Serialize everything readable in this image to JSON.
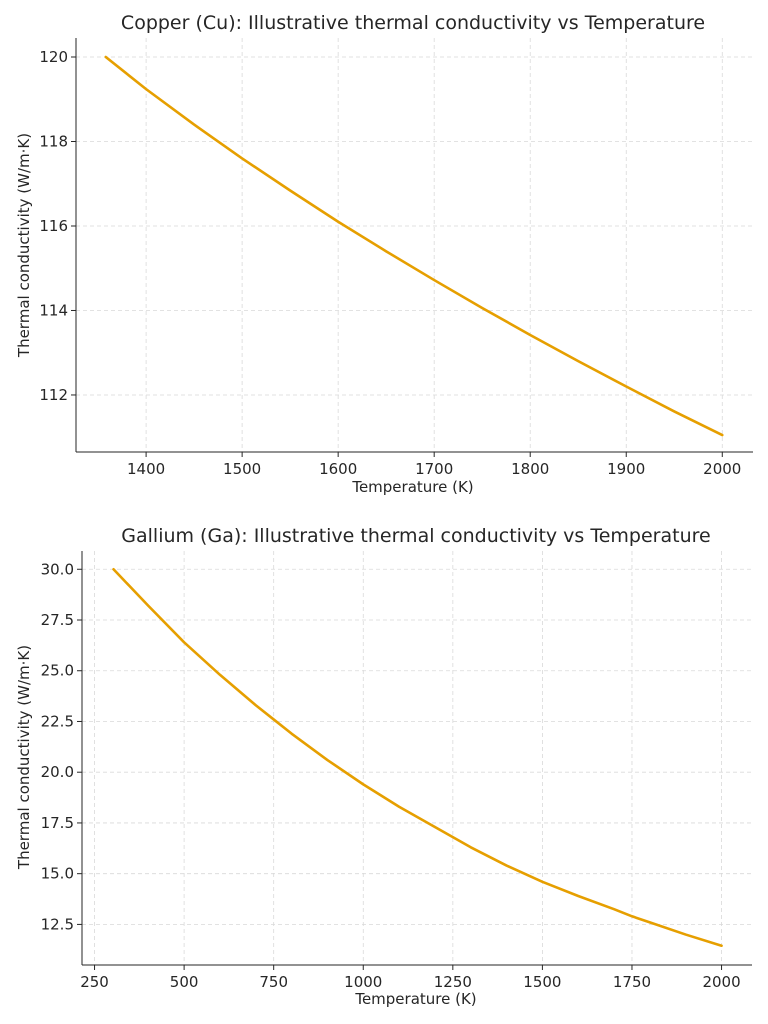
{
  "chart_data": [
    {
      "type": "line",
      "title": "Copper (Cu): Illustrative thermal conductivity vs Temperature",
      "xlabel": "Temperature (K)",
      "ylabel": "Thermal conductivity (W/m·K)",
      "xlim": [
        1327,
        2032
      ],
      "ylim": [
        110.65,
        120.45
      ],
      "xticks": [
        1400,
        1500,
        1600,
        1700,
        1800,
        1900,
        2000
      ],
      "xtick_labels": [
        "1400",
        "1500",
        "1600",
        "1700",
        "1800",
        "1900",
        "2000"
      ],
      "yticks": [
        112,
        114,
        116,
        118,
        120
      ],
      "ytick_labels": [
        "112",
        "114",
        "116",
        "118",
        "120"
      ],
      "grid": true,
      "series": [
        {
          "color": "#e69f00",
          "x": [
            1358,
            1400,
            1450,
            1500,
            1550,
            1600,
            1650,
            1700,
            1750,
            1800,
            1850,
            1900,
            1950,
            2000
          ],
          "y": [
            120.0,
            119.24,
            118.4,
            117.6,
            116.84,
            116.1,
            115.4,
            114.72,
            114.06,
            113.42,
            112.8,
            112.2,
            111.61,
            111.05
          ]
        }
      ]
    },
    {
      "type": "line",
      "title": "Gallium (Ga): Illustrative thermal conductivity vs Temperature",
      "xlabel": "Temperature (K)",
      "ylabel": "Thermal conductivity (W/m·K)",
      "xlim": [
        215,
        2085
      ],
      "ylim": [
        10.5,
        30.9
      ],
      "xticks": [
        250,
        500,
        750,
        1000,
        1250,
        1500,
        1750,
        2000
      ],
      "xtick_labels": [
        "250",
        "500",
        "750",
        "1000",
        "1250",
        "1500",
        "1750",
        "2000"
      ],
      "yticks": [
        12.5,
        15.0,
        17.5,
        20.0,
        22.5,
        25.0,
        27.5,
        30.0
      ],
      "ytick_labels": [
        "12.5",
        "15.0",
        "17.5",
        "20.0",
        "22.5",
        "25.0",
        "27.5",
        "30.0"
      ],
      "grid": true,
      "series": [
        {
          "color": "#e69f00",
          "x": [
            303,
            400,
            500,
            600,
            700,
            750,
            800,
            900,
            1000,
            1100,
            1200,
            1250,
            1300,
            1400,
            1500,
            1600,
            1700,
            1750,
            1800,
            1900,
            2000
          ],
          "y": [
            30.0,
            28.2,
            26.4,
            24.8,
            23.3,
            22.6,
            21.9,
            20.6,
            19.4,
            18.3,
            17.3,
            16.8,
            16.3,
            15.4,
            14.6,
            13.9,
            13.25,
            12.9,
            12.6,
            12.0,
            11.45
          ]
        }
      ]
    }
  ]
}
